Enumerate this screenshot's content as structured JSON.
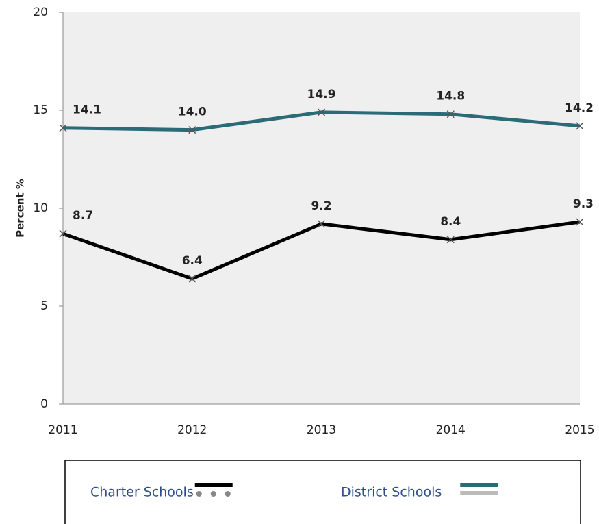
{
  "chart_data": {
    "type": "line",
    "y_label": "Percent %",
    "categories": [
      "2011",
      "2012",
      "2013",
      "2014",
      "2015"
    ],
    "series": [
      {
        "name": "Charter Schools",
        "color": "#000000",
        "values": [
          8.7,
          6.4,
          9.2,
          8.4,
          9.3
        ],
        "value_labels": [
          "8.7",
          "6.4",
          "9.2",
          "8.4",
          "9.3"
        ]
      },
      {
        "name": "District Schools",
        "color": "#2b6a77",
        "values": [
          14.1,
          14.0,
          14.9,
          14.8,
          14.2
        ],
        "value_labels": [
          "14.1",
          "14.0",
          "14.9",
          "14.8",
          "14.2"
        ]
      }
    ],
    "ylim": [
      0,
      20
    ],
    "yticks": [
      0,
      5,
      10,
      15,
      20
    ],
    "grid": false,
    "legend": "bottom"
  }
}
